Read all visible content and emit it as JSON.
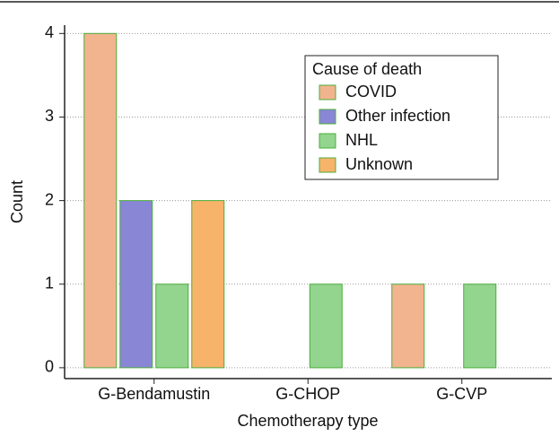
{
  "chart_data": {
    "type": "bar",
    "x_label": "Chemotherapy type",
    "y_label": "Count",
    "categories": [
      "G-Bendamustin",
      "G-CHOP",
      "G-CVP"
    ],
    "series": [
      {
        "name": "COVID",
        "color": "#f2b48e",
        "values": [
          4,
          0,
          1
        ]
      },
      {
        "name": "Other infection",
        "color": "#8a86d6",
        "values": [
          2,
          0,
          0
        ]
      },
      {
        "name": "NHL",
        "color": "#93d48f",
        "values": [
          1,
          1,
          1
        ]
      },
      {
        "name": "Unknown",
        "color": "#f8b36a",
        "values": [
          2,
          0,
          0
        ]
      }
    ],
    "legend_title": "Cause of death",
    "ylim": [
      -0.13,
      4.1
    ],
    "yticks": [
      0,
      1,
      2,
      3,
      4
    ],
    "grid": true,
    "legend": "upper right"
  }
}
